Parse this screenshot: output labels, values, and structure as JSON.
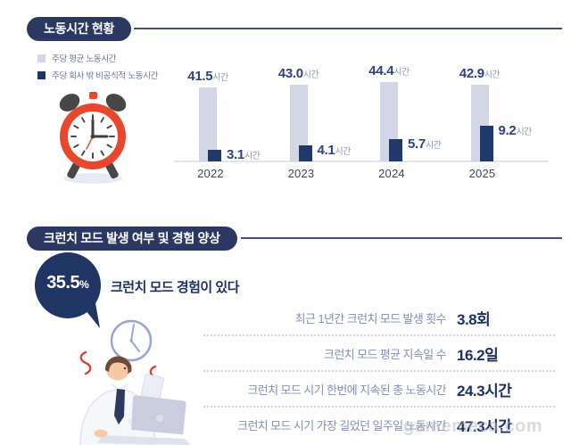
{
  "section_work_hours": {
    "title": "노동시간 현황",
    "legend": [
      {
        "label": "주당 평균 노동시간",
        "color": "#D3D6E4"
      },
      {
        "label": "주당 회사 밖 비공식적 노동시간",
        "color": "#1E3363"
      }
    ]
  },
  "section_crunch": {
    "title": "크런치 모드 발생 여부 및 경험 양상"
  },
  "chart_data": [
    {
      "type": "bar",
      "title": "노동시간 현황",
      "categories": [
        "2022",
        "2023",
        "2024",
        "2025"
      ],
      "series": [
        {
          "name": "주당 평균 노동시간",
          "values": [
            41.5,
            43.0,
            44.4,
            42.9
          ],
          "color": "#D3D6E4"
        },
        {
          "name": "주당 회사 밖 비공식적 노동시간",
          "values": [
            3.1,
            4.1,
            5.7,
            9.2
          ],
          "color": "#21386B"
        }
      ],
      "value_suffix": "시간",
      "xlabel": "",
      "ylabel": "",
      "legend_position": "top-left",
      "grid": false,
      "note": "dark series drawn at exaggerated scale in source infographic"
    },
    {
      "type": "table",
      "title": "크런치 모드 발생 여부 및 경험 양상",
      "highlight": {
        "value": "35.5",
        "unit": "%",
        "label": "크런치 모드 경험이 있다"
      },
      "rows": [
        {
          "label": "최근 1년간 크런치 모드 발생 횟수",
          "value": "3.8",
          "unit": "회"
        },
        {
          "label": "크런치 모드 평균 지속일 수",
          "value": "16.2",
          "unit": "일"
        },
        {
          "label": "크런치 모드 시기 한번에 지속된 총 노동시간",
          "value": "24.3",
          "unit": "시간"
        },
        {
          "label": "크런치 모드 시기 가장 길었던 일주일 노동시간",
          "value": "47.3",
          "unit": "시간"
        }
      ]
    }
  ],
  "watermark": "gamemeca.com",
  "colors": {
    "navy": "#1F3564",
    "badge": "#2B3862",
    "light_bar": "#D3D6E4",
    "dark_bar": "#21386B",
    "muted_label": "#8290B4",
    "accent_red": "#E8472E"
  }
}
